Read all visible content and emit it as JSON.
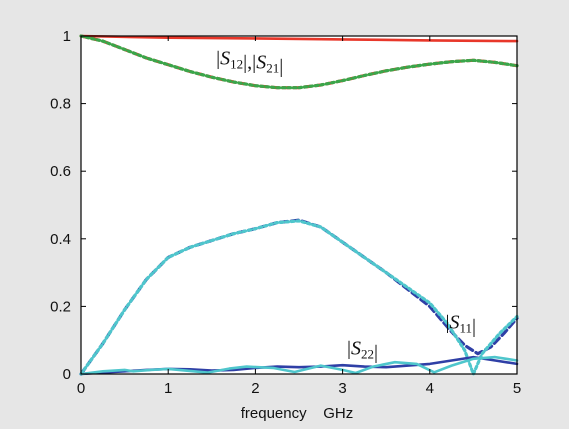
{
  "chart_data": {
    "type": "line",
    "title": "",
    "xlabel": "frequency    GHz",
    "ylabel": "",
    "xlim": [
      0,
      5
    ],
    "ylim": [
      0,
      1
    ],
    "xticks": [
      "0",
      "1",
      "2",
      "3",
      "4",
      "5"
    ],
    "yticks": [
      "0",
      "0.2",
      "0.4",
      "0.6",
      "0.8",
      "1"
    ],
    "grid": false,
    "legend": "none",
    "annotations": [
      {
        "text": "|S12|,|S21|",
        "x": 1.55,
        "y": 0.915
      },
      {
        "text": "|S11|",
        "x": 4.18,
        "y": 0.135
      },
      {
        "text": "|S22|",
        "x": 3.05,
        "y": 0.058
      }
    ],
    "series": [
      {
        "color": "#e8372a",
        "style": "solid",
        "x": [
          0,
          1,
          2,
          3,
          4,
          5
        ],
        "y": [
          1.0,
          0.995,
          0.993,
          0.99,
          0.987,
          0.985
        ]
      },
      {
        "color": "#e8372a",
        "style": "dashed",
        "x": [
          0,
          0.25,
          0.5,
          0.75,
          1.0,
          1.25,
          1.5,
          1.75,
          2.0,
          2.25,
          2.5,
          2.75,
          3.0,
          3.25,
          3.5,
          3.75,
          4.0,
          4.25,
          4.5,
          4.75,
          5.0
        ],
        "y": [
          1.0,
          0.985,
          0.96,
          0.935,
          0.915,
          0.895,
          0.878,
          0.864,
          0.853,
          0.847,
          0.847,
          0.855,
          0.868,
          0.883,
          0.897,
          0.908,
          0.917,
          0.924,
          0.928,
          0.922,
          0.912
        ]
      },
      {
        "color": "#3aa64a",
        "style": "dotted",
        "x": [
          0,
          0.25,
          0.5,
          0.75,
          1.0,
          1.25,
          1.5,
          1.75,
          2.0,
          2.25,
          2.5,
          2.75,
          3.0,
          3.25,
          3.5,
          3.75,
          4.0,
          4.25,
          4.5,
          4.75,
          5.0
        ],
        "y": [
          1.0,
          0.985,
          0.96,
          0.935,
          0.915,
          0.895,
          0.878,
          0.864,
          0.853,
          0.847,
          0.847,
          0.855,
          0.868,
          0.883,
          0.897,
          0.908,
          0.917,
          0.924,
          0.928,
          0.922,
          0.912
        ]
      },
      {
        "color": "#2f3fa6",
        "style": "dashed",
        "x": [
          0,
          0.25,
          0.5,
          0.75,
          1.0,
          1.25,
          1.5,
          1.75,
          2.0,
          2.25,
          2.5,
          2.75,
          3.0,
          3.25,
          3.5,
          3.75,
          4.0,
          4.25,
          4.4,
          4.55,
          4.7,
          4.85,
          5.0
        ],
        "y": [
          0.0,
          0.09,
          0.19,
          0.28,
          0.345,
          0.375,
          0.395,
          0.415,
          0.43,
          0.448,
          0.455,
          0.435,
          0.39,
          0.345,
          0.3,
          0.25,
          0.2,
          0.125,
          0.085,
          0.06,
          0.08,
          0.12,
          0.165
        ]
      },
      {
        "color": "#4fc6cc",
        "style": "dotted",
        "x": [
          0,
          0.25,
          0.5,
          0.75,
          1.0,
          1.25,
          1.5,
          1.75,
          2.0,
          2.25,
          2.5,
          2.75,
          3.0,
          3.25,
          3.5,
          3.75,
          4.0,
          4.2,
          4.4,
          4.5,
          4.6,
          4.8,
          5.0
        ],
        "y": [
          0.0,
          0.09,
          0.19,
          0.28,
          0.345,
          0.375,
          0.395,
          0.415,
          0.43,
          0.448,
          0.453,
          0.435,
          0.39,
          0.345,
          0.3,
          0.255,
          0.21,
          0.15,
          0.07,
          0.0,
          0.06,
          0.12,
          0.17
        ]
      },
      {
        "color": "#2f3fa6",
        "style": "solid",
        "x": [
          0,
          0.25,
          0.5,
          0.75,
          1.0,
          1.25,
          1.5,
          1.75,
          2.0,
          2.25,
          2.5,
          2.75,
          3.0,
          3.25,
          3.5,
          3.75,
          4.0,
          4.25,
          4.5,
          4.75,
          5.0
        ],
        "y": [
          0.0,
          0.004,
          0.008,
          0.012,
          0.015,
          0.014,
          0.01,
          0.012,
          0.018,
          0.022,
          0.02,
          0.022,
          0.026,
          0.022,
          0.02,
          0.025,
          0.03,
          0.04,
          0.05,
          0.04,
          0.03
        ]
      },
      {
        "color": "#4fc6cc",
        "style": "solid",
        "x": [
          0,
          0.25,
          0.5,
          0.6,
          0.8,
          1.0,
          1.2,
          1.45,
          1.7,
          1.9,
          2.2,
          2.45,
          2.75,
          3.0,
          3.15,
          3.35,
          3.6,
          3.85,
          4.05,
          4.25,
          4.5,
          4.75,
          5.0
        ],
        "y": [
          0.0,
          0.008,
          0.012,
          0.008,
          0.012,
          0.015,
          0.01,
          0.004,
          0.016,
          0.022,
          0.018,
          0.006,
          0.025,
          0.012,
          0.003,
          0.022,
          0.035,
          0.03,
          0.005,
          0.025,
          0.045,
          0.05,
          0.04
        ]
      }
    ]
  }
}
